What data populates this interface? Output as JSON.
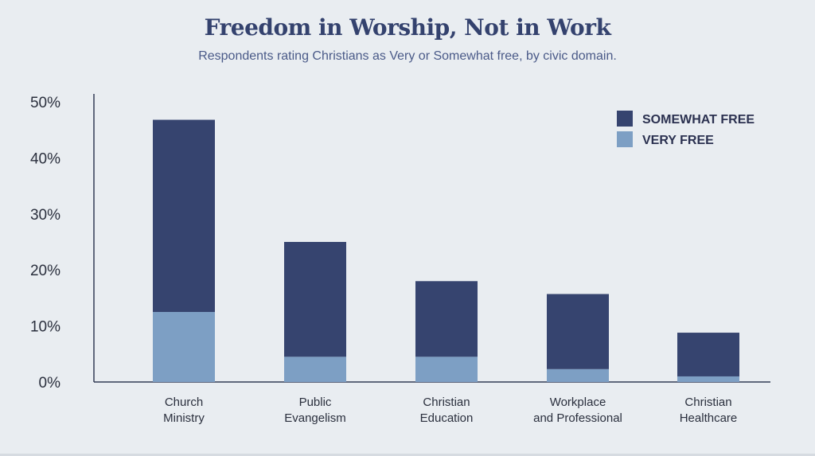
{
  "chart_data": {
    "type": "bar",
    "stacked": true,
    "title": "Freedom in Worship, Not in Work",
    "subtitle": "Respondents rating Christians as Very or Somewhat free, by civic domain.",
    "categories": [
      [
        "Church",
        "Ministry"
      ],
      [
        "Public",
        "Evangelism"
      ],
      [
        "Christian",
        "Education"
      ],
      [
        "Workplace",
        "and Professional"
      ],
      [
        "Christian",
        "Healthcare"
      ]
    ],
    "series": [
      {
        "name": "VERY FREE",
        "color": "#7d9fc4",
        "values": [
          12.5,
          4.5,
          4.5,
          2.3,
          1.0
        ]
      },
      {
        "name": "SOMEWHAT FREE",
        "color": "#36446f",
        "values": [
          34.3,
          20.5,
          13.5,
          13.4,
          7.8
        ]
      }
    ],
    "ylim": [
      0,
      50
    ],
    "yticks": [
      {
        "value": 0,
        "label": "0%"
      },
      {
        "value": 10,
        "label": "10%"
      },
      {
        "value": 20,
        "label": "20%"
      },
      {
        "value": 30,
        "label": "30%"
      },
      {
        "value": 40,
        "label": "40%"
      },
      {
        "value": 50,
        "label": "50%"
      }
    ],
    "legend": {
      "placement": "top-right",
      "items": [
        {
          "label": "SOMEWHAT FREE",
          "color": "#36446f"
        },
        {
          "label": "VERY FREE",
          "color": "#7d9fc4"
        }
      ]
    },
    "grid": false
  }
}
